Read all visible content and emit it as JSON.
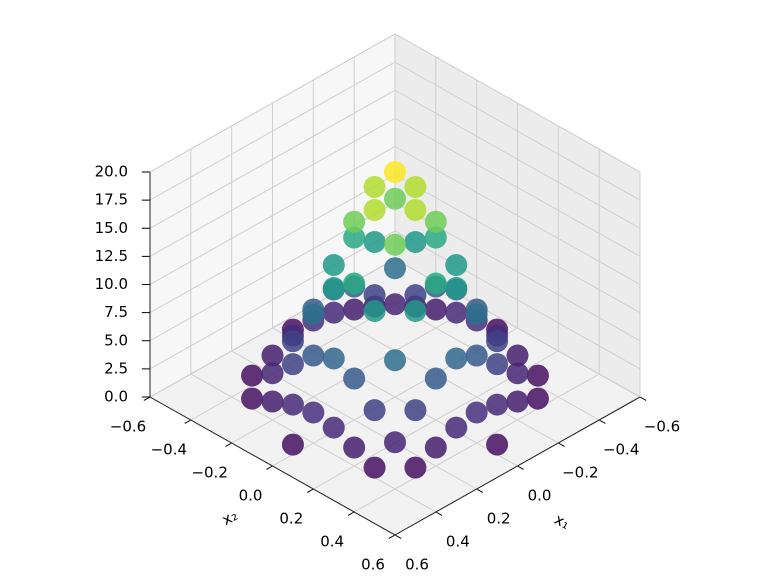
{
  "chart_data": {
    "type": "scatter3d",
    "xlabel": "x₁",
    "ylabel": "x₂",
    "colormap": "viridis",
    "grid": true,
    "xlim": [
      -0.6,
      0.6
    ],
    "ylim": [
      -0.6,
      0.6
    ],
    "zlim": [
      0,
      20
    ],
    "xticks": [
      {
        "value": -0.6,
        "label": "−0.6"
      },
      {
        "value": -0.4,
        "label": "−0.4"
      },
      {
        "value": -0.2,
        "label": "−0.2"
      },
      {
        "value": 0,
        "label": "0.0"
      },
      0.2,
      0.4,
      0.6
    ],
    "yticks": [
      {
        "value": -0.6,
        "label": "−0.6"
      },
      {
        "value": -0.4,
        "label": "−0.4"
      },
      {
        "value": -0.2,
        "label": "−0.2"
      },
      {
        "value": 0,
        "label": "0.0"
      },
      0.2,
      0.4,
      0.6
    ],
    "zticks": [
      {
        "value": 0,
        "label": "0.0"
      },
      2.5,
      {
        "value": 5,
        "label": "5.0"
      },
      7.5,
      {
        "value": 10,
        "label": "10.0"
      },
      12.5,
      {
        "value": 15,
        "label": "15.0"
      },
      17.5,
      {
        "value": 20,
        "label": "20.0"
      }
    ],
    "x": [
      -0.3,
      -0.4,
      -0.3,
      -0.2,
      -0.4,
      -0.5,
      -0.4,
      -0.3,
      -0.2,
      -0.1,
      0,
      -0.4,
      -0.3,
      -0.2,
      -0.1,
      0,
      -0.4,
      -0.3,
      -0.2,
      -0.1,
      0,
      0.1,
      -0.4,
      -0.3,
      -0.2,
      -0.1,
      0,
      0.1,
      0.2,
      -0.4,
      -0.3,
      -0.2,
      -0.1,
      0,
      0.1,
      0.2,
      0.3,
      -0.3,
      -0.2,
      -0.1,
      0,
      0.1,
      0.2,
      0.3,
      -0.3,
      -0.2,
      -0.1,
      0,
      0.1,
      0.2,
      0.3,
      0.4,
      -0.2,
      -0.1,
      0,
      0.1,
      0.2,
      0.3,
      0.4,
      -0.1,
      0,
      0.1,
      0.2,
      0.3,
      0.4,
      0,
      0.1,
      0.2,
      0.3,
      0.4,
      0,
      0.1,
      0.2,
      0.3,
      0.4,
      0.5,
      0.2,
      0.3,
      0.4,
      0.3,
      0.4
    ],
    "y": [
      -0.4,
      -0.3,
      -0.3,
      -0.4,
      -0.2,
      0,
      -0.1,
      -0.2,
      -0.3,
      -0.4,
      -0.5,
      0,
      -0.1,
      -0.2,
      -0.3,
      -0.4,
      0.1,
      0,
      -0.1,
      -0.2,
      -0.3,
      -0.4,
      0.2,
      0.1,
      0,
      -0.1,
      -0.2,
      -0.3,
      -0.4,
      0.3,
      0.2,
      0.1,
      0,
      -0.1,
      -0.2,
      -0.3,
      -0.4,
      0.3,
      0.2,
      0.1,
      0,
      -0.1,
      -0.2,
      -0.3,
      0.4,
      0.3,
      0.2,
      0.1,
      0,
      -0.1,
      -0.2,
      -0.3,
      0.4,
      0.3,
      0.2,
      0.1,
      0,
      -0.1,
      -0.2,
      0.4,
      0.3,
      0.2,
      0.1,
      0,
      -0.1,
      0.4,
      0.3,
      0.2,
      0.1,
      0,
      0.5,
      0.4,
      0.3,
      0.2,
      0.1,
      0,
      0.4,
      0.3,
      0.2,
      0.4,
      0.3
    ],
    "z": [
      0.88,
      0.88,
      2.11,
      1.64,
      1.64,
      0.88,
      2.39,
      3.94,
      3.94,
      2.39,
      0.88,
      2.71,
      5.73,
      7.36,
      5.73,
      2.71,
      2.39,
      6.49,
      10.71,
      10.71,
      6.49,
      2.39,
      1.64,
      5.73,
      12.13,
      15.58,
      12.13,
      5.73,
      1.64,
      0.88,
      3.94,
      10.71,
      17.65,
      17.65,
      10.71,
      3.94,
      0.88,
      2.11,
      7.36,
      15.58,
      20,
      15.58,
      7.36,
      2.11,
      0.88,
      3.94,
      10.71,
      17.65,
      17.65,
      10.71,
      3.94,
      0.88,
      1.64,
      5.73,
      12.13,
      15.58,
      12.13,
      5.73,
      1.64,
      2.39,
      6.49,
      10.71,
      10.71,
      6.49,
      2.39,
      2.71,
      5.73,
      7.36,
      5.73,
      2.71,
      0.88,
      2.39,
      3.94,
      3.94,
      2.39,
      0.88,
      1.64,
      2.11,
      1.64,
      0.88,
      0.88
    ]
  }
}
